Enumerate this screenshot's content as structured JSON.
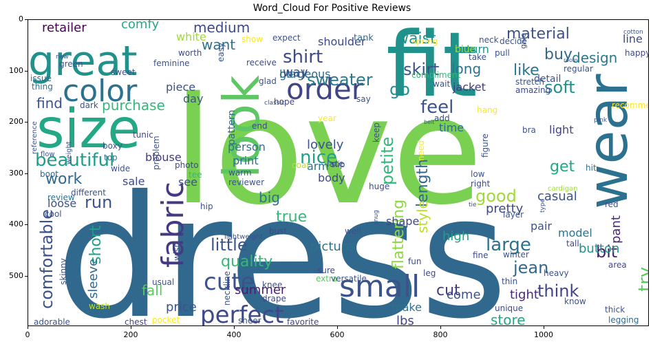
{
  "title": "Word_Cloud For Positive Reviews",
  "y_ticks": [
    "0",
    "100",
    "200",
    "300",
    "400",
    "500"
  ],
  "x_ticks": [
    "0",
    "200",
    "400",
    "600",
    "800",
    "1000"
  ],
  "words": [
    {
      "t": "dress",
      "c": "#31688e"
    },
    {
      "t": "love",
      "c": "#7ad151"
    },
    {
      "t": "fit",
      "c": "#21918c"
    },
    {
      "t": "size",
      "c": "#22a884"
    },
    {
      "t": "wear",
      "c": "#2c728e"
    },
    {
      "t": "look",
      "c": "#5dc863"
    },
    {
      "t": "great",
      "c": "#21918c"
    },
    {
      "t": "color",
      "c": "#2c728e"
    },
    {
      "t": "fabric",
      "c": "#443983"
    },
    {
      "t": "small",
      "c": "#3b528b"
    },
    {
      "t": "order",
      "c": "#414487"
    },
    {
      "t": "perfect",
      "c": "#3e4989"
    },
    {
      "t": "cute",
      "c": "#3b528b"
    },
    {
      "t": "beautiful",
      "c": "#1f9e89"
    },
    {
      "t": "shirt",
      "c": "#3e4989"
    },
    {
      "t": "sweater",
      "c": "#2a788e"
    },
    {
      "t": "material",
      "c": "#3b528b"
    },
    {
      "t": "soft",
      "c": "#21918c"
    },
    {
      "t": "buy",
      "c": "#31688e"
    },
    {
      "t": "like",
      "c": "#2c728e"
    },
    {
      "t": "design",
      "c": "#2a788e"
    },
    {
      "t": "nice",
      "c": "#1f9e89"
    },
    {
      "t": "feel",
      "c": "#3b528b"
    },
    {
      "t": "petite",
      "c": "#35b779"
    },
    {
      "t": "length",
      "c": "#31688e"
    },
    {
      "t": "skirt",
      "c": "#3b528b"
    },
    {
      "t": "long",
      "c": "#2c728e"
    },
    {
      "t": "waist",
      "c": "#21918c"
    },
    {
      "t": "good",
      "c": "#a0da39"
    },
    {
      "t": "get",
      "c": "#22a884"
    },
    {
      "t": "casual",
      "c": "#3b528b"
    },
    {
      "t": "pant",
      "c": "#482878"
    },
    {
      "t": "run",
      "c": "#3b528b"
    },
    {
      "t": "work",
      "c": "#31688e"
    },
    {
      "t": "sale",
      "c": "#3e4989"
    },
    {
      "t": "big",
      "c": "#2c728e"
    },
    {
      "t": "true",
      "c": "#35b779"
    },
    {
      "t": "little",
      "c": "#3b528b"
    },
    {
      "t": "quality",
      "c": "#35b779"
    },
    {
      "t": "flattering",
      "c": "#8fd744"
    },
    {
      "t": "style",
      "c": "#bddf26"
    },
    {
      "t": "pretty",
      "c": "#3e4989"
    },
    {
      "t": "large",
      "c": "#2c728e"
    },
    {
      "t": "bit",
      "c": "#481f70"
    },
    {
      "t": "jean",
      "c": "#31688e"
    },
    {
      "t": "think",
      "c": "#414487"
    },
    {
      "t": "try",
      "c": "#5dc863"
    },
    {
      "t": "summer",
      "c": "#481f70"
    },
    {
      "t": "short",
      "c": "#1fa187"
    },
    {
      "t": "comfortable",
      "c": "#3b528b"
    },
    {
      "t": "sleeve",
      "c": "#31688e"
    },
    {
      "t": "fall",
      "c": "#5dc863"
    },
    {
      "t": "price",
      "c": "#3b528b"
    },
    {
      "t": "store",
      "c": "#22a884"
    },
    {
      "t": "cut",
      "c": "#443983"
    },
    {
      "t": "come",
      "c": "#3b528b"
    },
    {
      "t": "tight",
      "c": "#482878"
    },
    {
      "t": "make",
      "c": "#2c728e"
    },
    {
      "t": "lbs",
      "c": "#414487"
    },
    {
      "t": "picture",
      "c": "#2c728e"
    },
    {
      "t": "high",
      "c": "#1fa187"
    },
    {
      "t": "model",
      "c": "#2c728e"
    },
    {
      "t": "button",
      "c": "#21918c"
    },
    {
      "t": "pair",
      "c": "#3b528b"
    },
    {
      "t": "shape",
      "c": "#3e4989"
    },
    {
      "t": "body",
      "c": "#3e4989"
    },
    {
      "t": "lovely",
      "c": "#3b528b"
    },
    {
      "t": "arm",
      "c": "#2c728e"
    },
    {
      "t": "time",
      "c": "#31688e"
    },
    {
      "t": "purchase",
      "c": "#35b779"
    },
    {
      "t": "find",
      "c": "#3b528b"
    },
    {
      "t": "want",
      "c": "#2c728e"
    },
    {
      "t": "medium",
      "c": "#3e4989"
    },
    {
      "t": "retailer",
      "c": "#440154"
    },
    {
      "t": "comfy",
      "c": "#22a884"
    },
    {
      "t": "white",
      "c": "#a0da39"
    },
    {
      "t": "gorgeous",
      "c": "#31688e"
    },
    {
      "t": "black",
      "c": "#2a788e"
    },
    {
      "t": "way",
      "c": "#3e4989"
    },
    {
      "t": "go",
      "c": "#21918c"
    },
    {
      "t": "jacket",
      "c": "#443983"
    },
    {
      "t": "piece",
      "c": "#3b528b"
    },
    {
      "t": "day",
      "c": "#3b528b"
    },
    {
      "t": "blouse",
      "c": "#443983"
    },
    {
      "t": "person",
      "c": "#2c728e"
    },
    {
      "t": "print",
      "c": "#2c728e"
    },
    {
      "t": "loose",
      "c": "#3b528b"
    },
    {
      "t": "see",
      "c": "#3b528b"
    },
    {
      "t": "pattern",
      "c": "#31688e"
    },
    {
      "t": "light",
      "c": "#414487"
    },
    {
      "t": "shoulder",
      "c": "#3e4989"
    },
    {
      "t": "return",
      "c": "#21918c"
    },
    {
      "t": "line",
      "c": "#3e4989"
    },
    {
      "t": "detail",
      "c": "#3b528b"
    },
    {
      "t": "blue",
      "c": "#a0da39"
    },
    {
      "t": "tank",
      "c": "#31688e"
    },
    {
      "t": "expect",
      "c": "#3b528b"
    },
    {
      "t": "show",
      "c": "#fde725"
    },
    {
      "t": "easy",
      "c": "#3b528b"
    },
    {
      "t": "worth",
      "c": "#3e4989"
    },
    {
      "t": "green",
      "c": "#3b528b"
    },
    {
      "t": "feminine",
      "c": "#3b528b"
    },
    {
      "t": "issue",
      "c": "#31688e"
    },
    {
      "t": "thing",
      "c": "#2c728e"
    },
    {
      "t": "dark",
      "c": "#3b528b"
    },
    {
      "t": "receive",
      "c": "#3e4989"
    },
    {
      "t": "glad",
      "c": "#3b528b"
    },
    {
      "t": "hope",
      "c": "#3e4989"
    },
    {
      "t": "tunic",
      "c": "#3e4989"
    },
    {
      "t": "boxy",
      "c": "#3b528b"
    },
    {
      "t": "top",
      "c": "#2c728e"
    },
    {
      "t": "problem",
      "c": "#3b528b"
    },
    {
      "t": "wide",
      "c": "#3b528b"
    },
    {
      "t": "boot",
      "c": "#31688e"
    },
    {
      "t": "different",
      "c": "#3b528b"
    },
    {
      "t": "review",
      "c": "#2c728e"
    },
    {
      "t": "cool",
      "c": "#3b528b"
    },
    {
      "t": "photo",
      "c": "#3e4989"
    },
    {
      "t": "tee",
      "c": "#35b779"
    },
    {
      "t": "warm",
      "c": "#3b528b"
    },
    {
      "t": "reviewer",
      "c": "#3b528b"
    },
    {
      "t": "hip",
      "c": "#3b528b"
    },
    {
      "t": "wish",
      "c": "#3b528b"
    },
    {
      "t": "skinny",
      "c": "#3b528b"
    },
    {
      "t": "usual",
      "c": "#3b528b"
    },
    {
      "t": "wash",
      "c": "#bddf26"
    },
    {
      "t": "adorable",
      "c": "#3b528b"
    },
    {
      "t": "chest",
      "c": "#3e4989"
    },
    {
      "t": "pocket",
      "c": "#fde725"
    },
    {
      "t": "sheer",
      "c": "#3b528b"
    },
    {
      "t": "favorite",
      "c": "#3e4989"
    },
    {
      "t": "neckline",
      "c": "#3b528b"
    },
    {
      "t": "drape",
      "c": "#3e4989"
    },
    {
      "t": "knee",
      "c": "#3b528b"
    },
    {
      "t": "extra",
      "c": "#5dc863"
    },
    {
      "t": "sure",
      "c": "#3e4989"
    },
    {
      "t": "versatile",
      "c": "#3b528b"
    },
    {
      "t": "well",
      "c": "#3b528b"
    },
    {
      "t": "bust",
      "c": "#3e4989"
    },
    {
      "t": "lightweight",
      "c": "#3b528b"
    },
    {
      "t": "fun",
      "c": "#3e4989"
    },
    {
      "t": "leg",
      "c": "#3e4989"
    },
    {
      "t": "thin",
      "c": "#3b528b"
    },
    {
      "t": "unique",
      "c": "#3e4989"
    },
    {
      "t": "know",
      "c": "#3b528b"
    },
    {
      "t": "fine",
      "c": "#3e4989"
    },
    {
      "t": "winter",
      "c": "#3b528b"
    },
    {
      "t": "heavy",
      "c": "#3b528b"
    },
    {
      "t": "area",
      "c": "#3e4989"
    },
    {
      "t": "thick",
      "c": "#3b528b"
    },
    {
      "t": "legging",
      "c": "#31688e"
    },
    {
      "t": "tall",
      "c": "#3e4989"
    },
    {
      "t": "layer",
      "c": "#3b528b"
    },
    {
      "t": "red",
      "c": "#3b528b"
    },
    {
      "t": "hit",
      "c": "#2c728e"
    },
    {
      "t": "cardigan",
      "c": "#a0da39"
    },
    {
      "t": "right",
      "c": "#3e4989"
    },
    {
      "t": "low",
      "c": "#3b528b"
    },
    {
      "t": "figure",
      "c": "#3b528b"
    },
    {
      "t": "bra",
      "c": "#3b528b"
    },
    {
      "t": "hang",
      "c": "#fde725"
    },
    {
      "t": "amazing",
      "c": "#3e4989"
    },
    {
      "t": "stretch",
      "c": "#3b528b"
    },
    {
      "t": "regular",
      "c": "#3b528b"
    },
    {
      "t": "compliment",
      "c": "#35b779"
    },
    {
      "t": "wait",
      "c": "#3b528b"
    },
    {
      "t": "take",
      "c": "#3b528b"
    },
    {
      "t": "pull",
      "c": "#3b528b"
    },
    {
      "t": "decide",
      "c": "#3b528b"
    },
    {
      "t": "spring",
      "c": "#fde725"
    },
    {
      "t": "neck",
      "c": "#3b528b"
    },
    {
      "t": "happy",
      "c": "#3e4989"
    },
    {
      "t": "cotton",
      "c": "#3b528b"
    },
    {
      "t": "give",
      "c": "#3b528b"
    },
    {
      "t": "room",
      "c": "#3b528b"
    },
    {
      "t": "recommend",
      "c": "#fde725"
    },
    {
      "t": "pink",
      "c": "#3b528b"
    },
    {
      "t": "belt",
      "c": "#3b528b"
    },
    {
      "t": "add",
      "c": "#3e4989"
    },
    {
      "t": "year",
      "c": "#fde725"
    },
    {
      "t": "lace",
      "c": "#3b528b"
    },
    {
      "t": "coat",
      "c": "#bddf26"
    },
    {
      "t": "keep",
      "c": "#3b528b"
    },
    {
      "t": "need",
      "c": "#fde725"
    },
    {
      "t": "slip",
      "c": "#3e4989"
    },
    {
      "t": "huge",
      "c": "#3e4989"
    },
    {
      "t": "say",
      "c": "#3b528b"
    },
    {
      "t": "classic",
      "c": "#3b528b"
    },
    {
      "t": "end",
      "c": "#3e4989"
    },
    {
      "t": "reference",
      "c": "#3b528b"
    },
    {
      "t": "flow",
      "c": "#3b528b"
    },
    {
      "t": "weight",
      "c": "#3b528b"
    },
    {
      "t": "new",
      "c": "#3b528b"
    },
    {
      "t": "tie",
      "c": "#3b528b"
    },
    {
      "t": "snug",
      "c": "#3b528b"
    },
    {
      "t": "type",
      "c": "#3b528b"
    },
    {
      "t": "sweet",
      "c": "#3b528b"
    }
  ]
}
